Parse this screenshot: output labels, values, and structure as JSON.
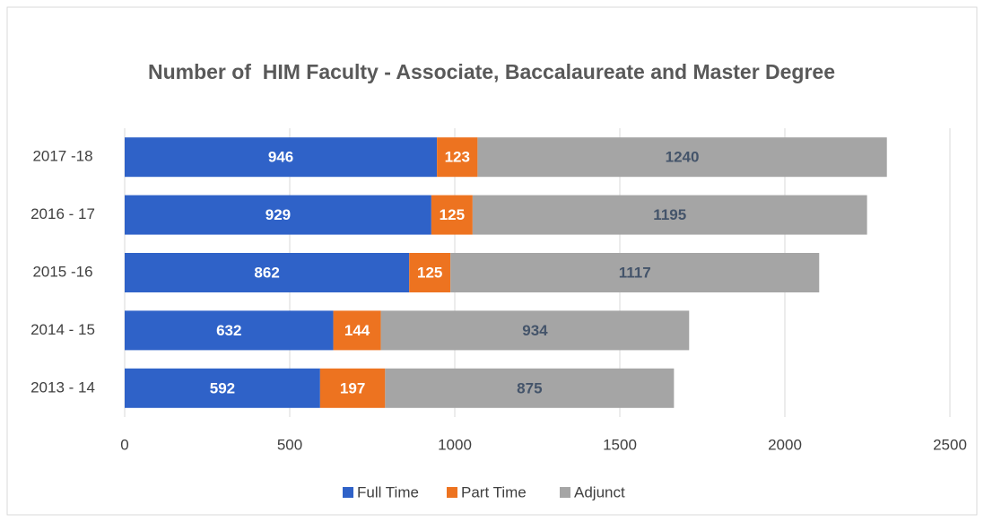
{
  "chart_data": {
    "type": "stacked_barh",
    "title": "Number of  HIM Faculty - Associate, Baccalaureate and Master Degree",
    "categories": [
      "2017 -18",
      "2016 - 17",
      "2015 -16",
      "2014 - 15",
      "2013 - 14"
    ],
    "series": [
      {
        "name": "Full Time",
        "color": "#2f62c8",
        "values": [
          946,
          929,
          862,
          632,
          592
        ]
      },
      {
        "name": "Part Time",
        "color": "#ed7320",
        "values": [
          123,
          125,
          125,
          144,
          197
        ]
      },
      {
        "name": "Adjunct",
        "color": "#a5a5a5",
        "values": [
          1240,
          1195,
          1117,
          934,
          875
        ]
      }
    ],
    "xlim": [
      0,
      2500
    ],
    "xticks": [
      0,
      500,
      1000,
      1500,
      2000,
      2500
    ],
    "grid": true,
    "legend": "bottom"
  }
}
